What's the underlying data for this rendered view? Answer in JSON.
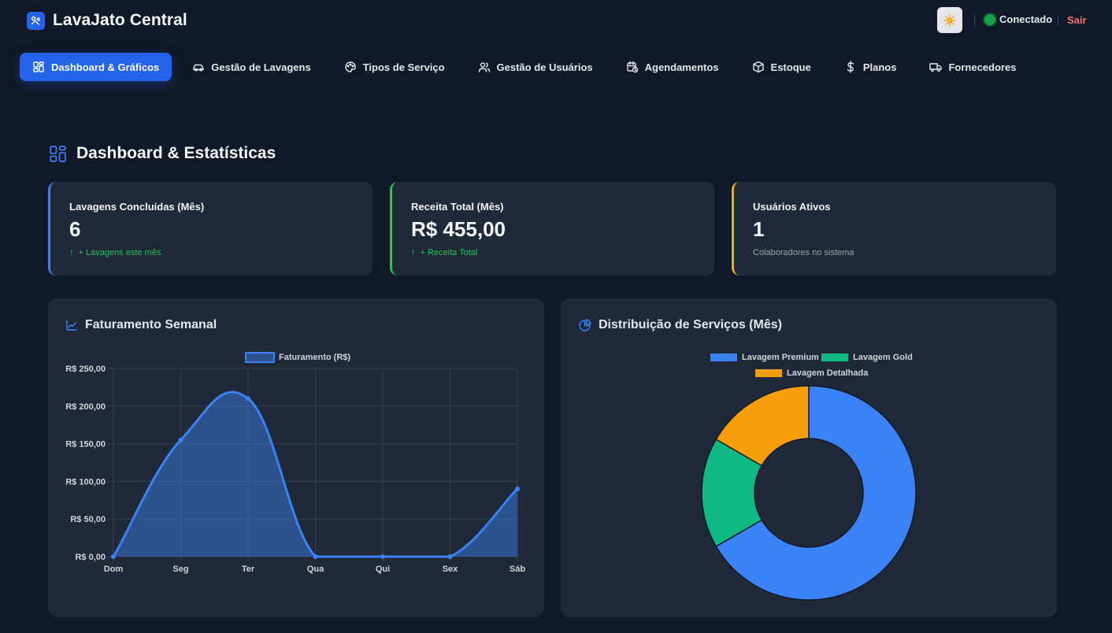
{
  "app": {
    "title": "LavaJato Central",
    "status": "Conectado",
    "logout_label": "Sair"
  },
  "icons": {
    "brand": "car-wash-logo-icon",
    "theme": "sun-icon",
    "status": "status-dot-icon"
  },
  "colors": {
    "accent": "#2563eb",
    "blue": "#3b82f6",
    "green": "#22c55e",
    "yellow": "#eab308",
    "teal": "#10b981",
    "orange": "#f59e0b",
    "danger": "#f87171"
  },
  "nav": {
    "items": [
      {
        "label": "Dashboard & Gráficos",
        "icon": "dashboard-grid-icon",
        "active": true
      },
      {
        "label": "Gestão de Lavagens",
        "icon": "car-icon"
      },
      {
        "label": "Tipos de Serviço",
        "icon": "palette-icon"
      },
      {
        "label": "Gestão de Usuários",
        "icon": "users-icon"
      },
      {
        "label": "Agendamentos",
        "icon": "calendar-clock-icon"
      },
      {
        "label": "Estoque",
        "icon": "package-icon"
      },
      {
        "label": "Planos",
        "icon": "dollar-icon"
      },
      {
        "label": "Fornecedores",
        "icon": "truck-icon"
      }
    ]
  },
  "page": {
    "title": "Dashboard & Estatísticas"
  },
  "stats": [
    {
      "label": "Lavagens Concluídas (Mês)",
      "value": "6",
      "sub": "+ Lavagens este mês",
      "trend": "up"
    },
    {
      "label": "Receita Total (Mês)",
      "value": "R$ 455,00",
      "sub": "+ Receita Total",
      "trend": "up"
    },
    {
      "label": "Usuários Ativos",
      "value": "1",
      "sub": "Colaboradores no sistema",
      "trend": "none"
    }
  ],
  "charts": {
    "weekly_title": "Faturamento Semanal",
    "distribution_title": "Distribuição de Serviços (Mês)"
  },
  "chart_data": [
    {
      "type": "area",
      "title": "Faturamento Semanal",
      "categories": [
        "Dom",
        "Seg",
        "Ter",
        "Qua",
        "Qui",
        "Sex",
        "Sáb"
      ],
      "series": [
        {
          "name": "Faturamento (R$)",
          "values": [
            0,
            155,
            210,
            0,
            0,
            0,
            90
          ]
        }
      ],
      "y_ticks": [
        "R$ 0,00",
        "R$ 50,00",
        "R$ 100,00",
        "R$ 150,00",
        "R$ 200,00",
        "R$ 250,00"
      ],
      "ylim": [
        0,
        250
      ],
      "grid": true,
      "legend": "top"
    },
    {
      "type": "pie",
      "title": "Distribuição de Serviços (Mês)",
      "categories": [
        "Lavagem Premium",
        "Lavagem Gold",
        "Lavagem Detalhada"
      ],
      "values": [
        4,
        1,
        1
      ],
      "colors": [
        "#3b82f6",
        "#10b981",
        "#f59e0b"
      ],
      "donut": true,
      "legend": "top"
    }
  ]
}
